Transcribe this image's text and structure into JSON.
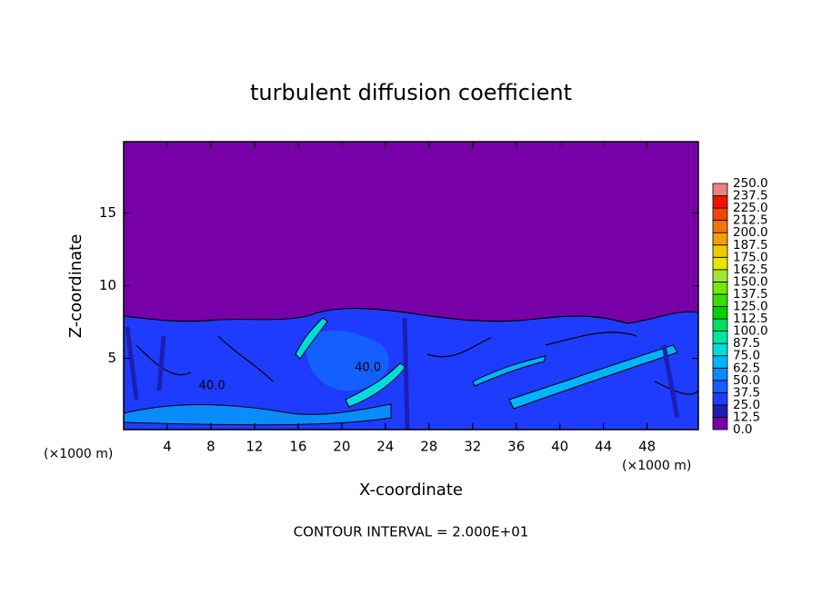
{
  "chart_data": {
    "type": "contour",
    "title": "turbulent diffusion coefficient",
    "xlabel": "X-coordinate",
    "ylabel": "Z-coordinate",
    "x_unit_label": "(×1000 m)",
    "y_unit_label": "(×1000 m)",
    "annotation": "CONTOUR INTERVAL = 2.000E+01",
    "xlim": [
      0,
      52.7
    ],
    "xticks": [
      4,
      8,
      12,
      16,
      20,
      24,
      28,
      32,
      36,
      40,
      44,
      48
    ],
    "ylim": [
      0.1,
      19.9
    ],
    "yticks": [
      5,
      10,
      15
    ],
    "contour_labels": [
      {
        "text": "40.0",
        "x": 8.1,
        "z": 3.1
      },
      {
        "text": "40.0",
        "x": 22.4,
        "z": 4.35
      }
    ],
    "colorbar": {
      "levels": [
        {
          "value": 0,
          "label": "0.0"
        },
        {
          "value": 12.5,
          "label": "12.5"
        },
        {
          "value": 25,
          "label": "25.0"
        },
        {
          "value": 37.5,
          "label": "37.5"
        },
        {
          "value": 50,
          "label": "50.0"
        },
        {
          "value": 62.5,
          "label": "62.5"
        },
        {
          "value": 75,
          "label": "75.0"
        },
        {
          "value": 87.5,
          "label": "87.5"
        },
        {
          "value": 100,
          "label": "100.0"
        },
        {
          "value": 112.5,
          "label": "112.5"
        },
        {
          "value": 125,
          "label": "125.0"
        },
        {
          "value": 137.5,
          "label": "137.5"
        },
        {
          "value": 150,
          "label": "150.0"
        },
        {
          "value": 162.5,
          "label": "162.5"
        },
        {
          "value": 175,
          "label": "175.0"
        },
        {
          "value": 187.5,
          "label": "187.5"
        },
        {
          "value": 200,
          "label": "200.0"
        },
        {
          "value": 212.5,
          "label": "212.5"
        },
        {
          "value": 225,
          "label": "225.0"
        },
        {
          "value": 237.5,
          "label": "237.5"
        },
        {
          "value": 250,
          "label": "250.0"
        }
      ],
      "colors": [
        "#7800a8",
        "#1e1eb4",
        "#1e3cff",
        "#1460ff",
        "#0a8cff",
        "#00b4ff",
        "#00dcdc",
        "#00e6a0",
        "#00dc64",
        "#00d200",
        "#3cdc00",
        "#78e600",
        "#a0e632",
        "#e6e600",
        "#f0c800",
        "#f0a000",
        "#f07800",
        "#f04600",
        "#f01400",
        "#f08080"
      ]
    }
  }
}
